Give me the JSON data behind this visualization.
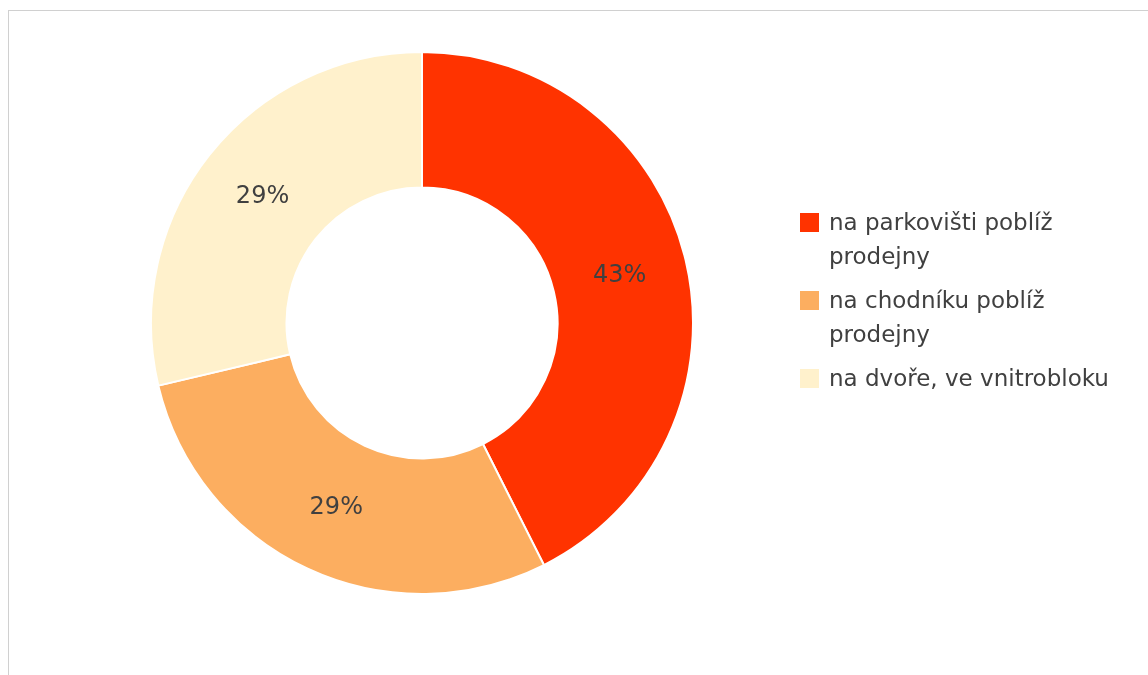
{
  "chart_data": {
    "type": "donut",
    "categories": [
      "na parkovišti poblíž prodejny",
      "na chodníku poblíž prodejny",
      "na dvoře, ve vnitrobloku"
    ],
    "values": [
      43,
      29,
      29
    ],
    "colors": [
      "#ff3300",
      "#fcae60",
      "#fff1cc"
    ],
    "value_labels": [
      "43%",
      "29%",
      "29%"
    ],
    "legend": "right"
  }
}
